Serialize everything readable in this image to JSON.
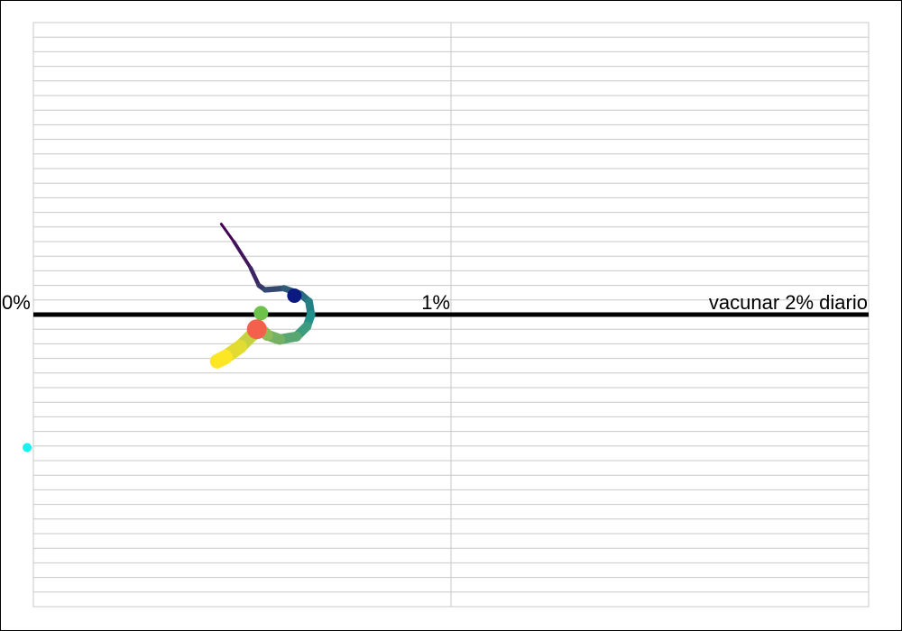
{
  "chart_data": {
    "type": "line",
    "title": "",
    "xlabel": "",
    "ylabel": "",
    "xlim": [
      0,
      2
    ],
    "ylim": [
      -1,
      1
    ],
    "grid": true,
    "axis_labels": {
      "start": "0%",
      "mid": "1%",
      "end": "vacunar 2% diario"
    },
    "trajectory": {
      "x": [
        0.45,
        0.48,
        0.52,
        0.54,
        0.555,
        0.6,
        0.64,
        0.66,
        0.665,
        0.655,
        0.63,
        0.59,
        0.56,
        0.545,
        0.52,
        0.495,
        0.46,
        0.44
      ],
      "y": [
        0.31,
        0.25,
        0.16,
        0.1,
        0.085,
        0.09,
        0.07,
        0.045,
        0.0,
        -0.04,
        -0.075,
        -0.085,
        -0.07,
        -0.05,
        -0.075,
        -0.11,
        -0.145,
        -0.16
      ]
    },
    "markers": [
      {
        "x": 0.625,
        "y": 0.065,
        "color": "#0b1a80"
      },
      {
        "x": 0.545,
        "y": 0.005,
        "color": "#6cc24a"
      },
      {
        "x": 0.535,
        "y": -0.05,
        "color": "#f4604c"
      },
      {
        "x": -0.015,
        "y": -0.455,
        "color": "#1af0f0"
      }
    ],
    "colors": {
      "trajectory_start": "#440154",
      "trajectory_mid": "#21918c",
      "trajectory_end": "#fde725",
      "axis": "#000000",
      "grid": "#c8c8c8"
    }
  }
}
